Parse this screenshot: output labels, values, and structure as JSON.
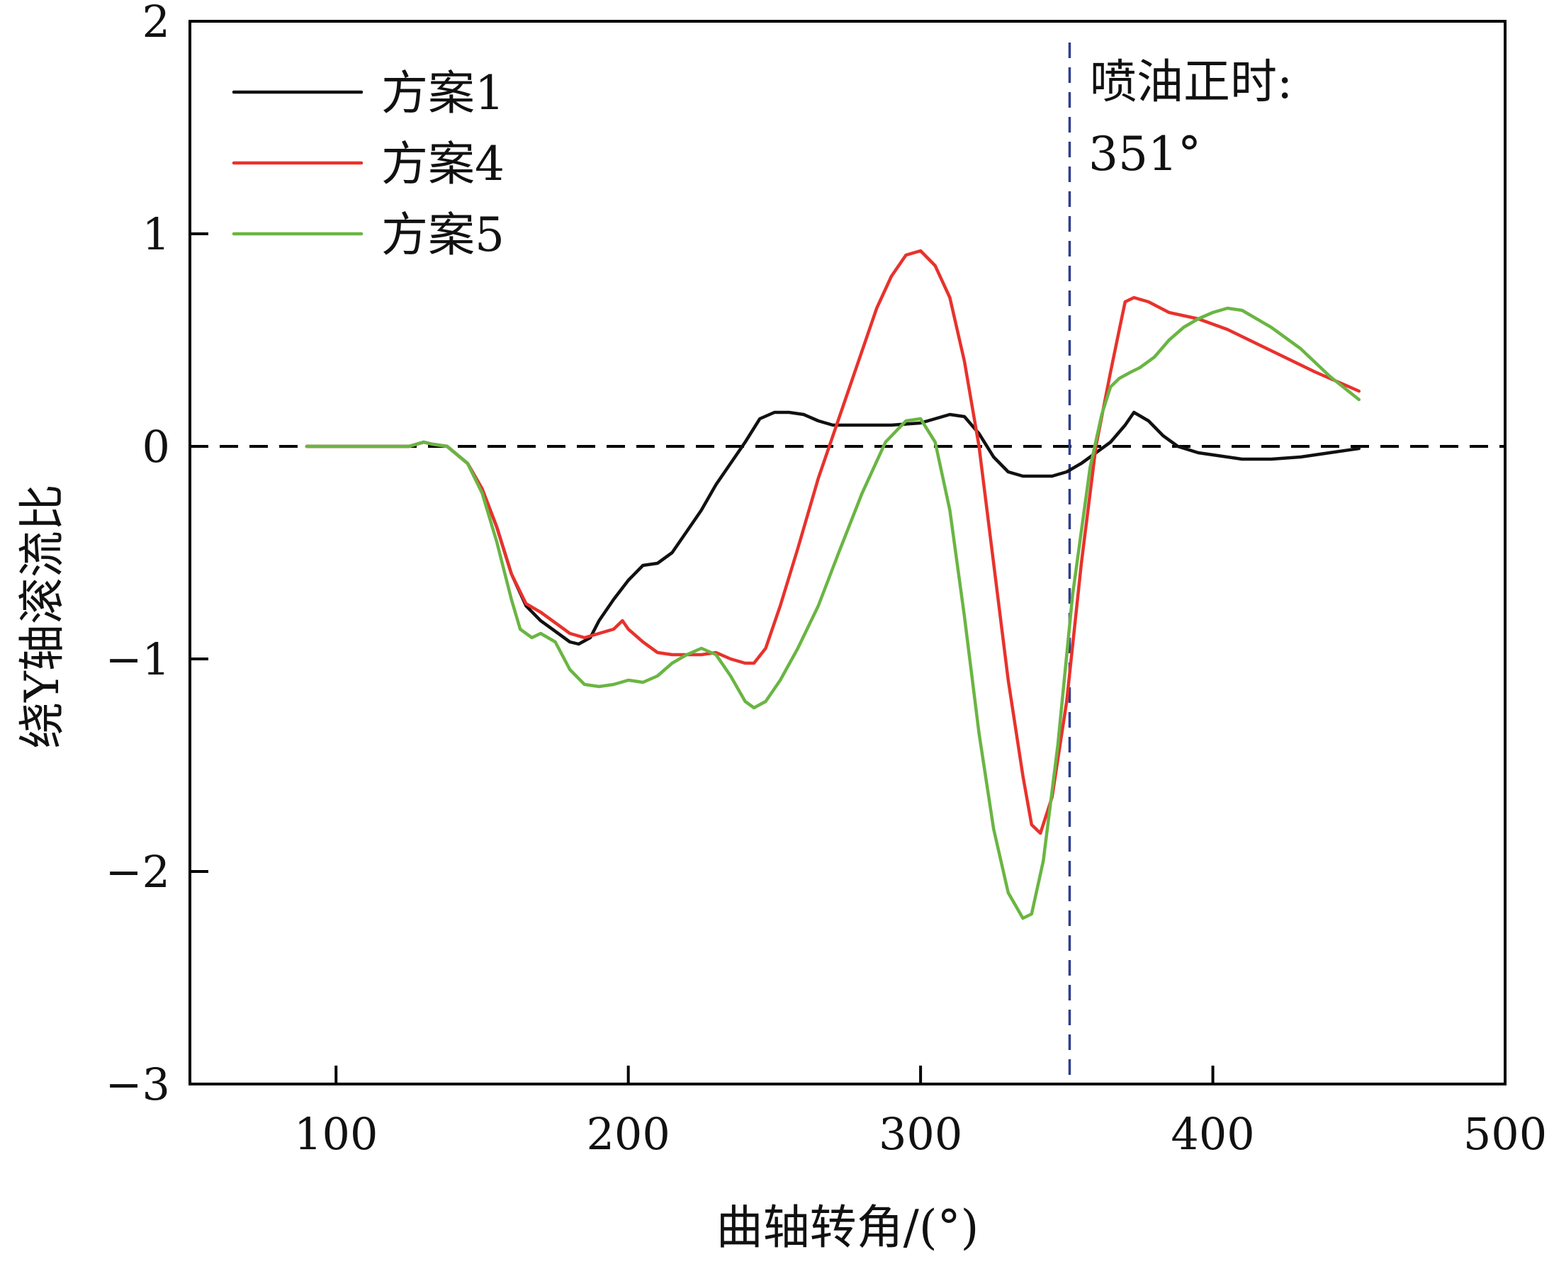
{
  "chart_data": {
    "type": "line",
    "xlabel": "曲轴转角/(°)",
    "ylabel": "绕Y轴滚流比",
    "xlim": [
      50,
      500
    ],
    "ylim": [
      -3,
      2
    ],
    "xticks": [
      100,
      200,
      300,
      400,
      500
    ],
    "yticks": [
      2,
      1,
      0,
      -1,
      -2,
      -3
    ],
    "ytick_labels": [
      "2",
      "1",
      "0",
      "−1",
      "−2",
      "−3"
    ],
    "legend_position": "top-left",
    "reference_lines": [
      {
        "orientation": "horizontal",
        "value": 0,
        "style": "dashed",
        "color": "#000000"
      },
      {
        "orientation": "vertical",
        "value": 351,
        "style": "dashed",
        "color": "#2e3e8e"
      }
    ],
    "annotation": {
      "line1": "喷油正时:",
      "line2": "351°"
    },
    "series": [
      {
        "name": "方案1",
        "color": "#111111",
        "x": [
          90,
          125,
          130,
          133,
          138,
          145,
          150,
          155,
          160,
          165,
          170,
          175,
          180,
          183,
          187,
          190,
          195,
          200,
          205,
          210,
          215,
          220,
          225,
          230,
          235,
          240,
          245,
          250,
          255,
          260,
          265,
          270,
          280,
          290,
          300,
          305,
          310,
          315,
          320,
          325,
          330,
          335,
          340,
          345,
          350,
          355,
          360,
          365,
          370,
          373,
          378,
          383,
          388,
          395,
          405,
          410,
          420,
          430,
          440,
          450
        ],
        "y": [
          0,
          0,
          0.02,
          0.01,
          0,
          -0.08,
          -0.2,
          -0.38,
          -0.6,
          -0.75,
          -0.82,
          -0.87,
          -0.92,
          -0.93,
          -0.9,
          -0.82,
          -0.72,
          -0.63,
          -0.56,
          -0.55,
          -0.5,
          -0.4,
          -0.3,
          -0.18,
          -0.08,
          0.02,
          0.13,
          0.16,
          0.16,
          0.15,
          0.12,
          0.1,
          0.1,
          0.1,
          0.11,
          0.13,
          0.15,
          0.14,
          0.06,
          -0.05,
          -0.12,
          -0.14,
          -0.14,
          -0.14,
          -0.12,
          -0.08,
          -0.03,
          0.02,
          0.1,
          0.16,
          0.12,
          0.05,
          0.0,
          -0.03,
          -0.05,
          -0.06,
          -0.06,
          -0.05,
          -0.03,
          -0.01
        ]
      },
      {
        "name": "方案4",
        "color": "#e8322c",
        "x": [
          90,
          125,
          130,
          133,
          138,
          145,
          150,
          155,
          160,
          165,
          170,
          175,
          180,
          185,
          190,
          195,
          198,
          200,
          205,
          210,
          215,
          220,
          225,
          230,
          235,
          240,
          243,
          247,
          252,
          258,
          265,
          270,
          275,
          280,
          285,
          290,
          295,
          300,
          305,
          310,
          315,
          320,
          325,
          330,
          335,
          338,
          341,
          345,
          350,
          355,
          360,
          365,
          368,
          370,
          373,
          378,
          385,
          395,
          405,
          420,
          435,
          450
        ],
        "y": [
          0,
          0,
          0.02,
          0.01,
          0,
          -0.08,
          -0.2,
          -0.38,
          -0.6,
          -0.74,
          -0.78,
          -0.83,
          -0.88,
          -0.9,
          -0.88,
          -0.86,
          -0.82,
          -0.86,
          -0.92,
          -0.97,
          -0.98,
          -0.98,
          -0.98,
          -0.97,
          -1.0,
          -1.02,
          -1.02,
          -0.95,
          -0.75,
          -0.48,
          -0.15,
          0.05,
          0.25,
          0.45,
          0.65,
          0.8,
          0.9,
          0.92,
          0.85,
          0.7,
          0.4,
          0.0,
          -0.55,
          -1.1,
          -1.55,
          -1.78,
          -1.82,
          -1.65,
          -1.2,
          -0.55,
          0.0,
          0.35,
          0.55,
          0.68,
          0.7,
          0.68,
          0.63,
          0.6,
          0.55,
          0.45,
          0.35,
          0.26
        ]
      },
      {
        "name": "方案5",
        "color": "#6ab543",
        "x": [
          90,
          125,
          130,
          133,
          138,
          145,
          150,
          155,
          160,
          163,
          167,
          170,
          175,
          180,
          185,
          190,
          195,
          200,
          205,
          210,
          215,
          220,
          225,
          230,
          235,
          240,
          243,
          247,
          252,
          258,
          265,
          272,
          280,
          288,
          295,
          300,
          305,
          310,
          315,
          320,
          325,
          330,
          335,
          338,
          342,
          347,
          352,
          358,
          362,
          365,
          368,
          372,
          375,
          380,
          385,
          390,
          395,
          400,
          405,
          410,
          420,
          430,
          440,
          450
        ],
        "y": [
          0,
          0,
          0.02,
          0.01,
          0,
          -0.08,
          -0.22,
          -0.45,
          -0.72,
          -0.86,
          -0.9,
          -0.88,
          -0.92,
          -1.05,
          -1.12,
          -1.13,
          -1.12,
          -1.1,
          -1.11,
          -1.08,
          -1.02,
          -0.98,
          -0.95,
          -0.98,
          -1.08,
          -1.2,
          -1.23,
          -1.2,
          -1.1,
          -0.95,
          -0.75,
          -0.5,
          -0.22,
          0.02,
          0.12,
          0.13,
          0.02,
          -0.3,
          -0.8,
          -1.35,
          -1.8,
          -2.1,
          -2.22,
          -2.2,
          -1.95,
          -1.4,
          -0.7,
          -0.1,
          0.15,
          0.28,
          0.32,
          0.35,
          0.37,
          0.42,
          0.5,
          0.56,
          0.6,
          0.63,
          0.65,
          0.64,
          0.56,
          0.46,
          0.33,
          0.22
        ]
      }
    ]
  }
}
